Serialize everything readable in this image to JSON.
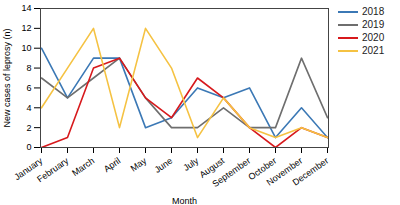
{
  "chart_data": {
    "type": "line",
    "x_label": "Month",
    "y_label": "New cases of leprosy (n)",
    "categories": [
      "January",
      "February",
      "March",
      "April",
      "May",
      "June",
      "July",
      "August",
      "September",
      "October",
      "November",
      "December"
    ],
    "series": [
      {
        "name": "2018",
        "color": "#3b78b5",
        "values": [
          10,
          5,
          9,
          9,
          2,
          3,
          6,
          5,
          6,
          1,
          4,
          1
        ]
      },
      {
        "name": "2019",
        "color": "#6e6e6e",
        "values": [
          7,
          5,
          7,
          9,
          5,
          2,
          2,
          4,
          2,
          2,
          9,
          3
        ]
      },
      {
        "name": "2020",
        "color": "#d7191c",
        "values": [
          0,
          1,
          8,
          9,
          5,
          3,
          7,
          5,
          2,
          0,
          2,
          1
        ]
      },
      {
        "name": "2021",
        "color": "#f5c242",
        "values": [
          4,
          8,
          12,
          2,
          12,
          8,
          1,
          5,
          2,
          1,
          2,
          1
        ]
      }
    ],
    "ylim": [
      0,
      14
    ],
    "yticks": [
      0,
      2,
      4,
      6,
      8,
      10,
      12,
      14
    ],
    "grid": false,
    "legend": "upper right"
  }
}
